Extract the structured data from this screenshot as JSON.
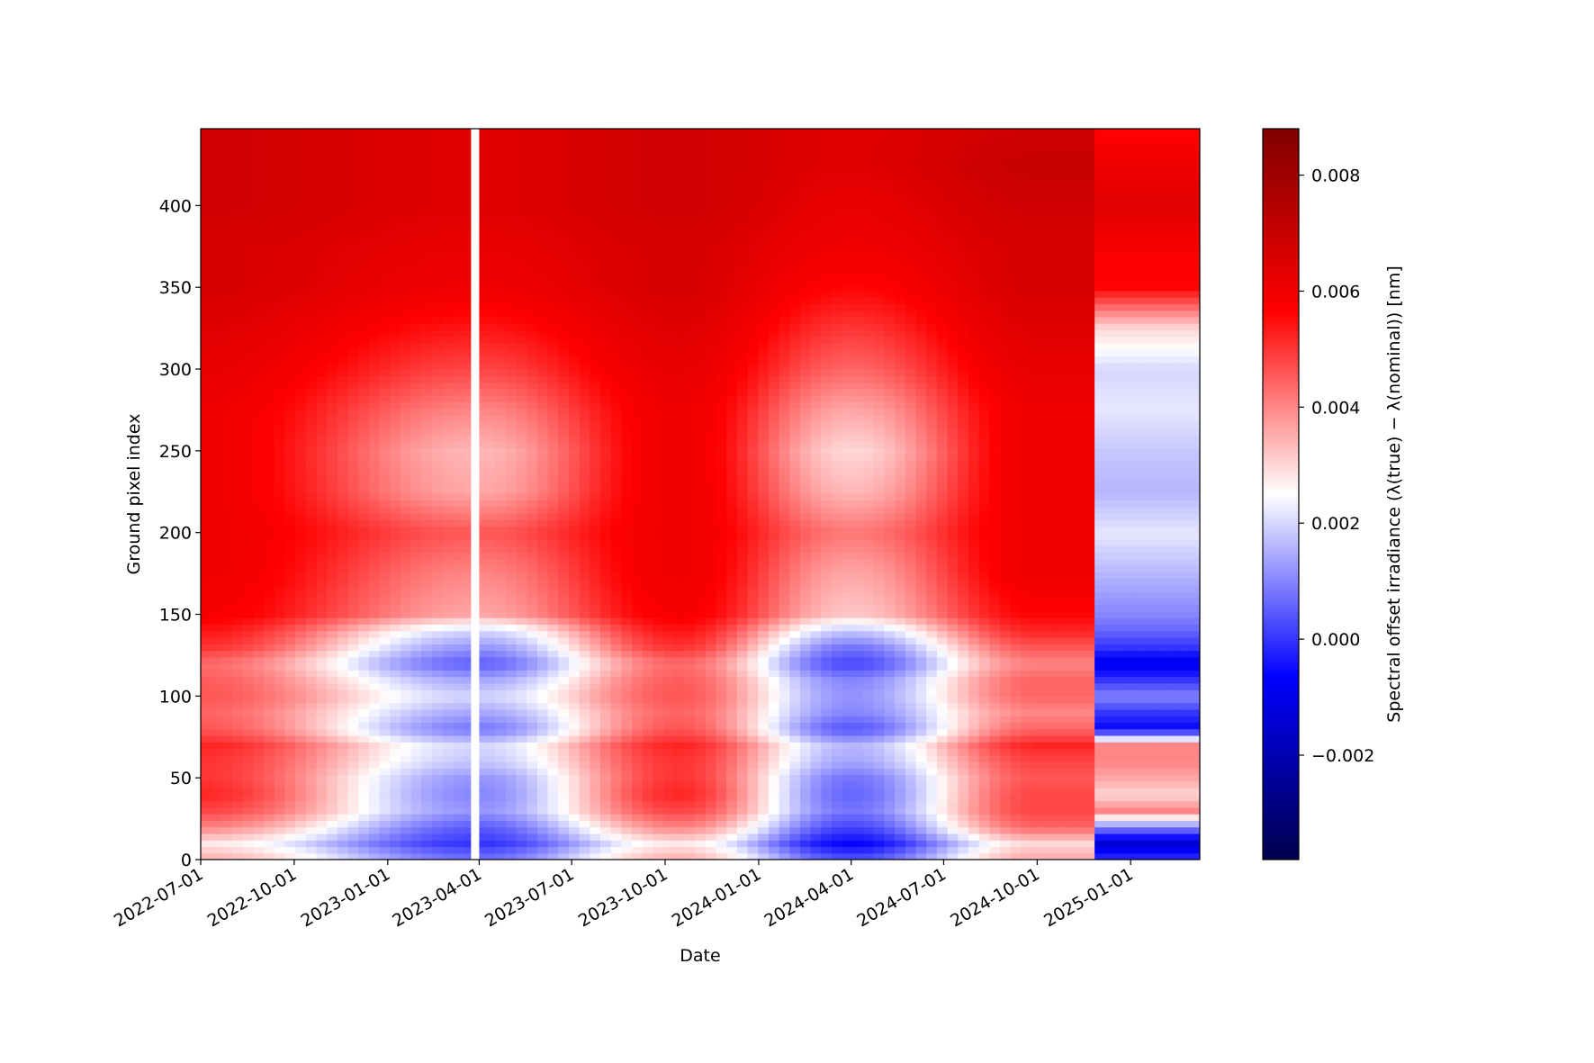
{
  "chart_data": {
    "type": "heatmap",
    "title": "",
    "xlabel": "Date",
    "ylabel": "Ground pixel index",
    "colorbar_label": "Spectral offset irradiance (λ(true) − λ(nominal)) [nm]",
    "colormap": "seismic",
    "colormap_stops": [
      "#00004c",
      "#0000ff",
      "#ffffff",
      "#ff0000",
      "#7f0000"
    ],
    "xlim": [
      "2022-07-01",
      "2025-03-10"
    ],
    "ylim": [
      0,
      447
    ],
    "x_ticks": [
      "2022-07-01",
      "2022-10-01",
      "2023-01-01",
      "2023-04-01",
      "2023-07-01",
      "2023-10-01",
      "2024-01-01",
      "2024-04-01",
      "2024-07-01",
      "2024-10-01",
      "2025-01-01"
    ],
    "y_ticks": [
      0,
      50,
      100,
      150,
      200,
      250,
      300,
      350,
      400
    ],
    "color_range": [
      -0.0038,
      0.0088
    ],
    "colorbar_ticks": [
      -0.002,
      0.0,
      0.002,
      0.004,
      0.006,
      0.008
    ],
    "colorbar_tick_labels": [
      "−0.002",
      "0.000",
      "0.002",
      "0.004",
      "0.006",
      "0.008"
    ],
    "data_gaps": [
      [
        "2023-03-24",
        "2023-04-01"
      ]
    ],
    "regime_change_date": "2024-11-23",
    "profile_by_ground_pixel": {
      "ground_pixel": [
        0,
        10,
        20,
        30,
        40,
        50,
        60,
        70,
        80,
        90,
        100,
        110,
        120,
        130,
        140,
        150,
        175,
        200,
        225,
        250,
        275,
        300,
        325,
        350,
        375,
        400,
        425,
        447
      ],
      "offset_nm_mid_2022": [
        0.0035,
        0.0028,
        0.004,
        0.0048,
        0.0052,
        0.005,
        0.005,
        0.0052,
        0.0046,
        0.0044,
        0.0046,
        0.0045,
        0.0043,
        0.005,
        0.0054,
        0.0058,
        0.006,
        0.006,
        0.006,
        0.006,
        0.006,
        0.0062,
        0.0064,
        0.0066,
        0.0066,
        0.0068,
        0.0068,
        0.0068
      ],
      "offset_nm_apr_2023": [
        0.0008,
        0.0,
        0.0005,
        0.0012,
        0.001,
        0.0012,
        0.0018,
        0.002,
        0.0008,
        0.0014,
        0.002,
        0.0014,
        0.0005,
        0.0012,
        0.002,
        0.0036,
        0.004,
        0.0046,
        0.0036,
        0.0034,
        0.004,
        0.0048,
        0.0054,
        0.006,
        0.0062,
        0.0064,
        0.0064,
        0.0064
      ],
      "offset_nm_apr_2024": [
        0.0004,
        -0.0006,
        0.0002,
        0.0008,
        0.0006,
        0.0008,
        0.0014,
        0.0016,
        0.0004,
        0.001,
        0.0012,
        0.001,
        0.0002,
        0.0008,
        0.0018,
        0.0032,
        0.0036,
        0.0042,
        0.0034,
        0.003,
        0.0036,
        0.0044,
        0.005,
        0.0056,
        0.006,
        0.0062,
        0.0064,
        0.0064
      ],
      "offset_nm_oct_2024": [
        0.0036,
        0.003,
        0.0044,
        0.0048,
        0.0048,
        0.0046,
        0.0048,
        0.0052,
        0.0044,
        0.004,
        0.0044,
        0.0044,
        0.004,
        0.0046,
        0.0052,
        0.0056,
        0.006,
        0.006,
        0.006,
        0.006,
        0.006,
        0.0062,
        0.0064,
        0.0066,
        0.0066,
        0.0068,
        0.007,
        0.0068
      ],
      "offset_nm_jan_2025": [
        0.0,
        -0.0014,
        0.001,
        0.004,
        0.003,
        0.0036,
        0.004,
        0.004,
        -0.0006,
        0.0,
        0.001,
        0.0,
        -0.001,
        0.0,
        0.0006,
        0.001,
        0.0016,
        0.0022,
        0.0016,
        0.0018,
        0.0022,
        0.002,
        0.003,
        0.0056,
        0.0058,
        0.0064,
        0.006,
        0.0056
      ]
    }
  }
}
